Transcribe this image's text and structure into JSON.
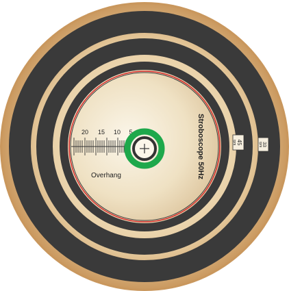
{
  "labels": {
    "title": "Stroboscope 50Hz",
    "overhang_label": "Overhang",
    "scale_numbers": [
      "20",
      "15",
      "10",
      "5"
    ],
    "speed_45": "45",
    "speed_45_unit": "rpm",
    "speed_33": "33",
    "speed_33_unit": "rpm"
  },
  "colors": {
    "rim": "#cfa36a",
    "paper": "#f1e6cf",
    "track": "#3a3a3a",
    "red_ring": "#d42a2a",
    "spindle_ring": "#1ea84b"
  },
  "icons": {
    "spindle": "crosshair-icon"
  }
}
